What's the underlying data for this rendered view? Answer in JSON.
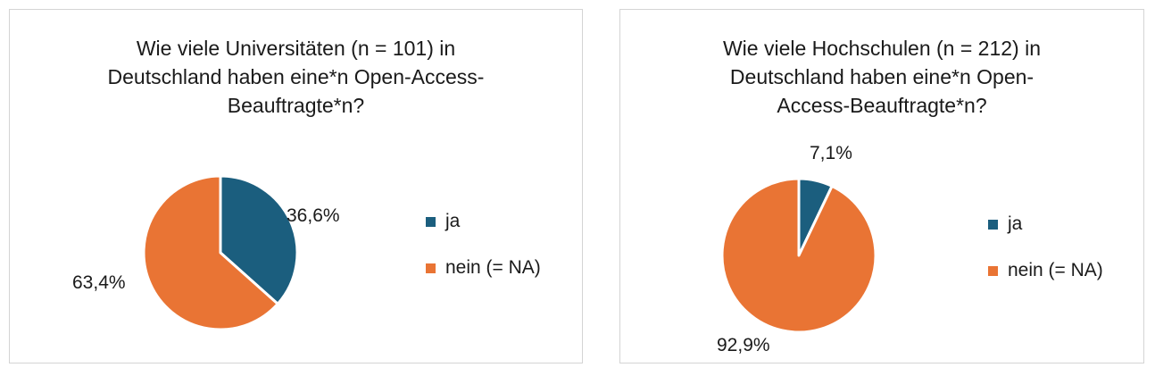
{
  "chart_data": [
    {
      "type": "pie",
      "title": "Wie viele Universitäten (n = 101) in Deutschland haben eine*n Open-Access-Beauftragte*n?",
      "title_lines": [
        "Wie viele Universitäten (n = 101) in",
        "Deutschland haben eine*n Open-Access-",
        "Beauftragte*n?"
      ],
      "categories": [
        "ja",
        "nein (= NA)"
      ],
      "values": [
        36.6,
        63.4
      ],
      "value_labels": [
        "36,6%",
        "63,4%"
      ],
      "colors": [
        "#1b5e7e",
        "#e97434"
      ],
      "legend_position": "right"
    },
    {
      "type": "pie",
      "title": "Wie viele Hochschulen (n = 212) in Deutschland haben eine*n Open-Access-Beauftragte*n?",
      "title_lines": [
        "Wie viele Hochschulen (n = 212) in",
        "Deutschland haben eine*n Open-",
        "Access-Beauftragte*n?"
      ],
      "categories": [
        "ja",
        "nein (= NA)"
      ],
      "values": [
        7.1,
        92.9
      ],
      "value_labels": [
        "7,1%",
        "92,9%"
      ],
      "colors": [
        "#1b5e7e",
        "#e97434"
      ],
      "legend_position": "right"
    }
  ]
}
